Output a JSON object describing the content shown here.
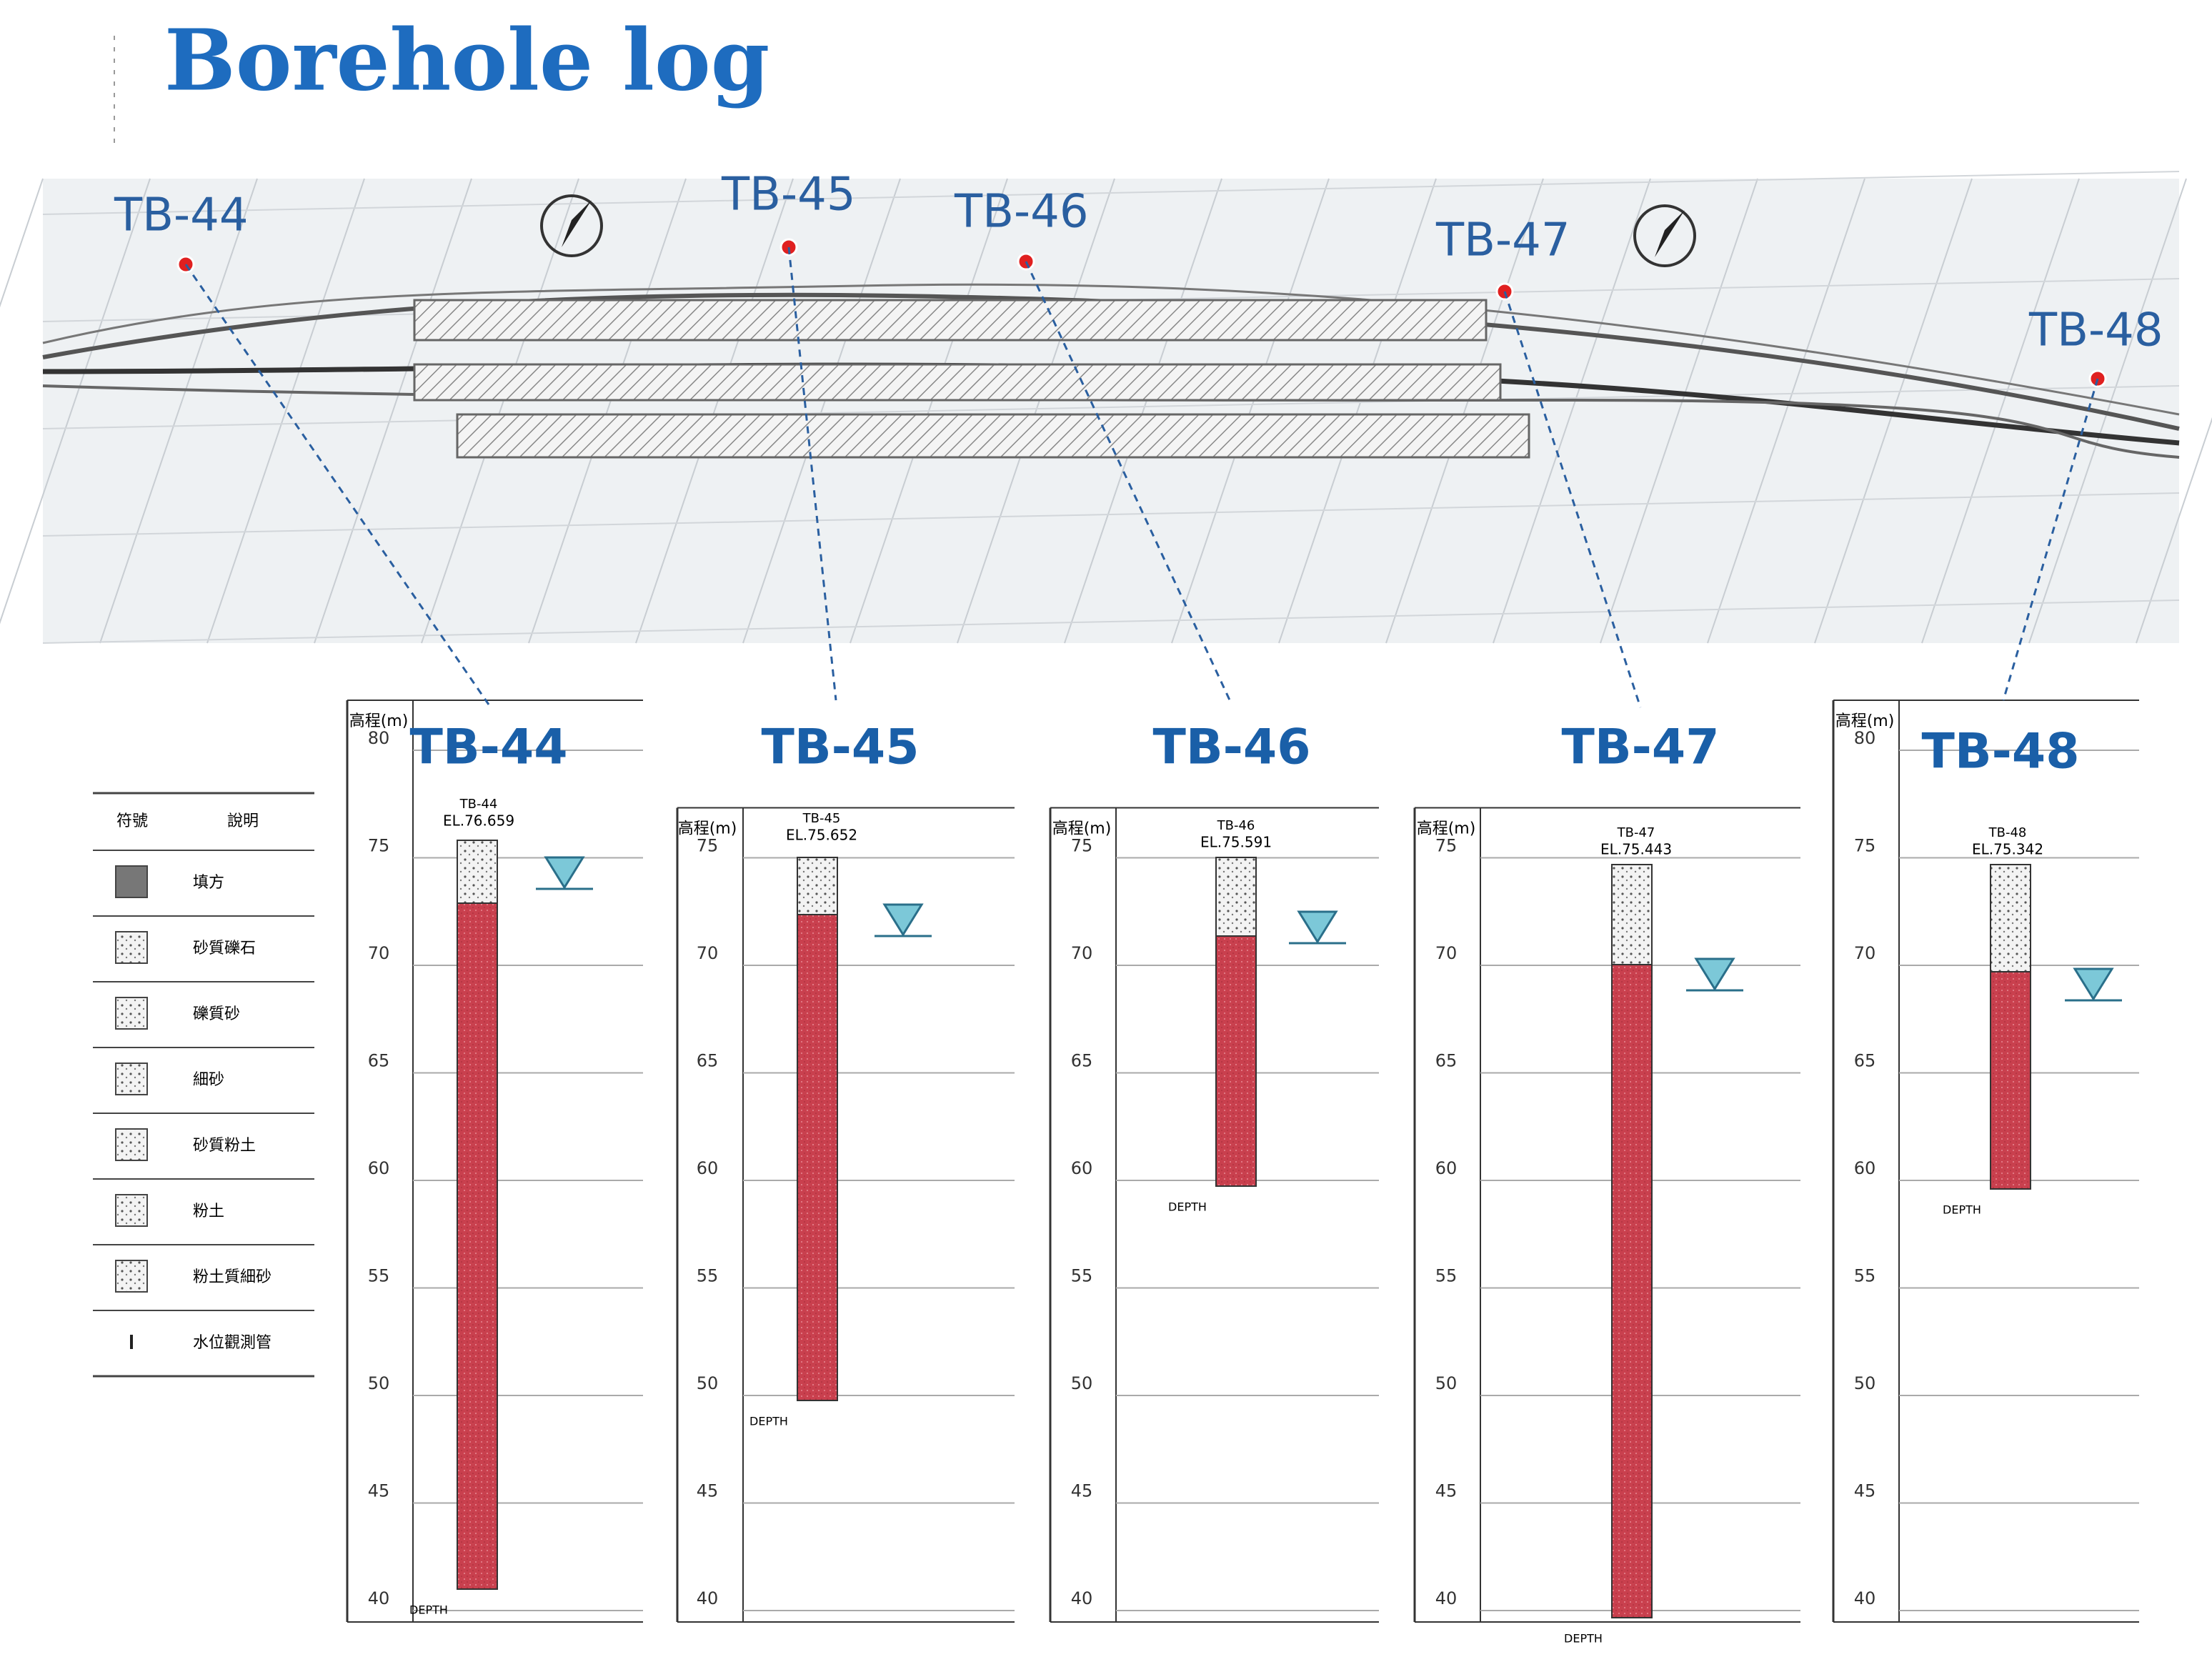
{
  "title": "Borehole log",
  "plan": {
    "labels": [
      "TB-44",
      "TB-45",
      "TB-46",
      "TB-47",
      "TB-48"
    ]
  },
  "legend": {
    "header": [
      "符號",
      "說明"
    ],
    "rows": [
      "填方",
      "砂質礫石",
      "礫質砂",
      "細砂",
      "砂質粉土",
      "粉土",
      "粉土質細砂",
      "水位觀測管"
    ]
  },
  "boreholes": [
    {
      "name": "TB-44",
      "tag": "TB-44",
      "elevation": "EL.76.659",
      "axis_title": "高程(m)",
      "ticks": [
        "80",
        "75",
        "70",
        "65",
        "60",
        "55",
        "50",
        "45",
        "40"
      ],
      "depth_label": "DEPTH"
    },
    {
      "name": "TB-45",
      "tag": "TB-45",
      "elevation": "EL.75.652",
      "axis_title": "高程(m)",
      "ticks": [
        "75",
        "70",
        "65",
        "60",
        "55",
        "50",
        "45",
        "40"
      ],
      "depth_label": "DEPTH"
    },
    {
      "name": "TB-46",
      "tag": "TB-46",
      "elevation": "EL.75.591",
      "axis_title": "高程(m)",
      "ticks": [
        "75",
        "70",
        "65",
        "60",
        "55",
        "50",
        "45",
        "40"
      ],
      "depth_label": "DEPTH"
    },
    {
      "name": "TB-47",
      "tag": "TB-47",
      "elevation": "EL.75.443",
      "axis_title": "高程(m)",
      "ticks": [
        "75",
        "70",
        "65",
        "60",
        "55",
        "50",
        "45",
        "40"
      ],
      "depth_label": "DEPTH"
    },
    {
      "name": "TB-48",
      "tag": "TB-48",
      "elevation": "EL.75.342",
      "axis_title": "高程(m)",
      "ticks": [
        "80",
        "75",
        "70",
        "65",
        "60",
        "55",
        "50",
        "45",
        "40"
      ],
      "depth_label": "DEPTH"
    }
  ]
}
